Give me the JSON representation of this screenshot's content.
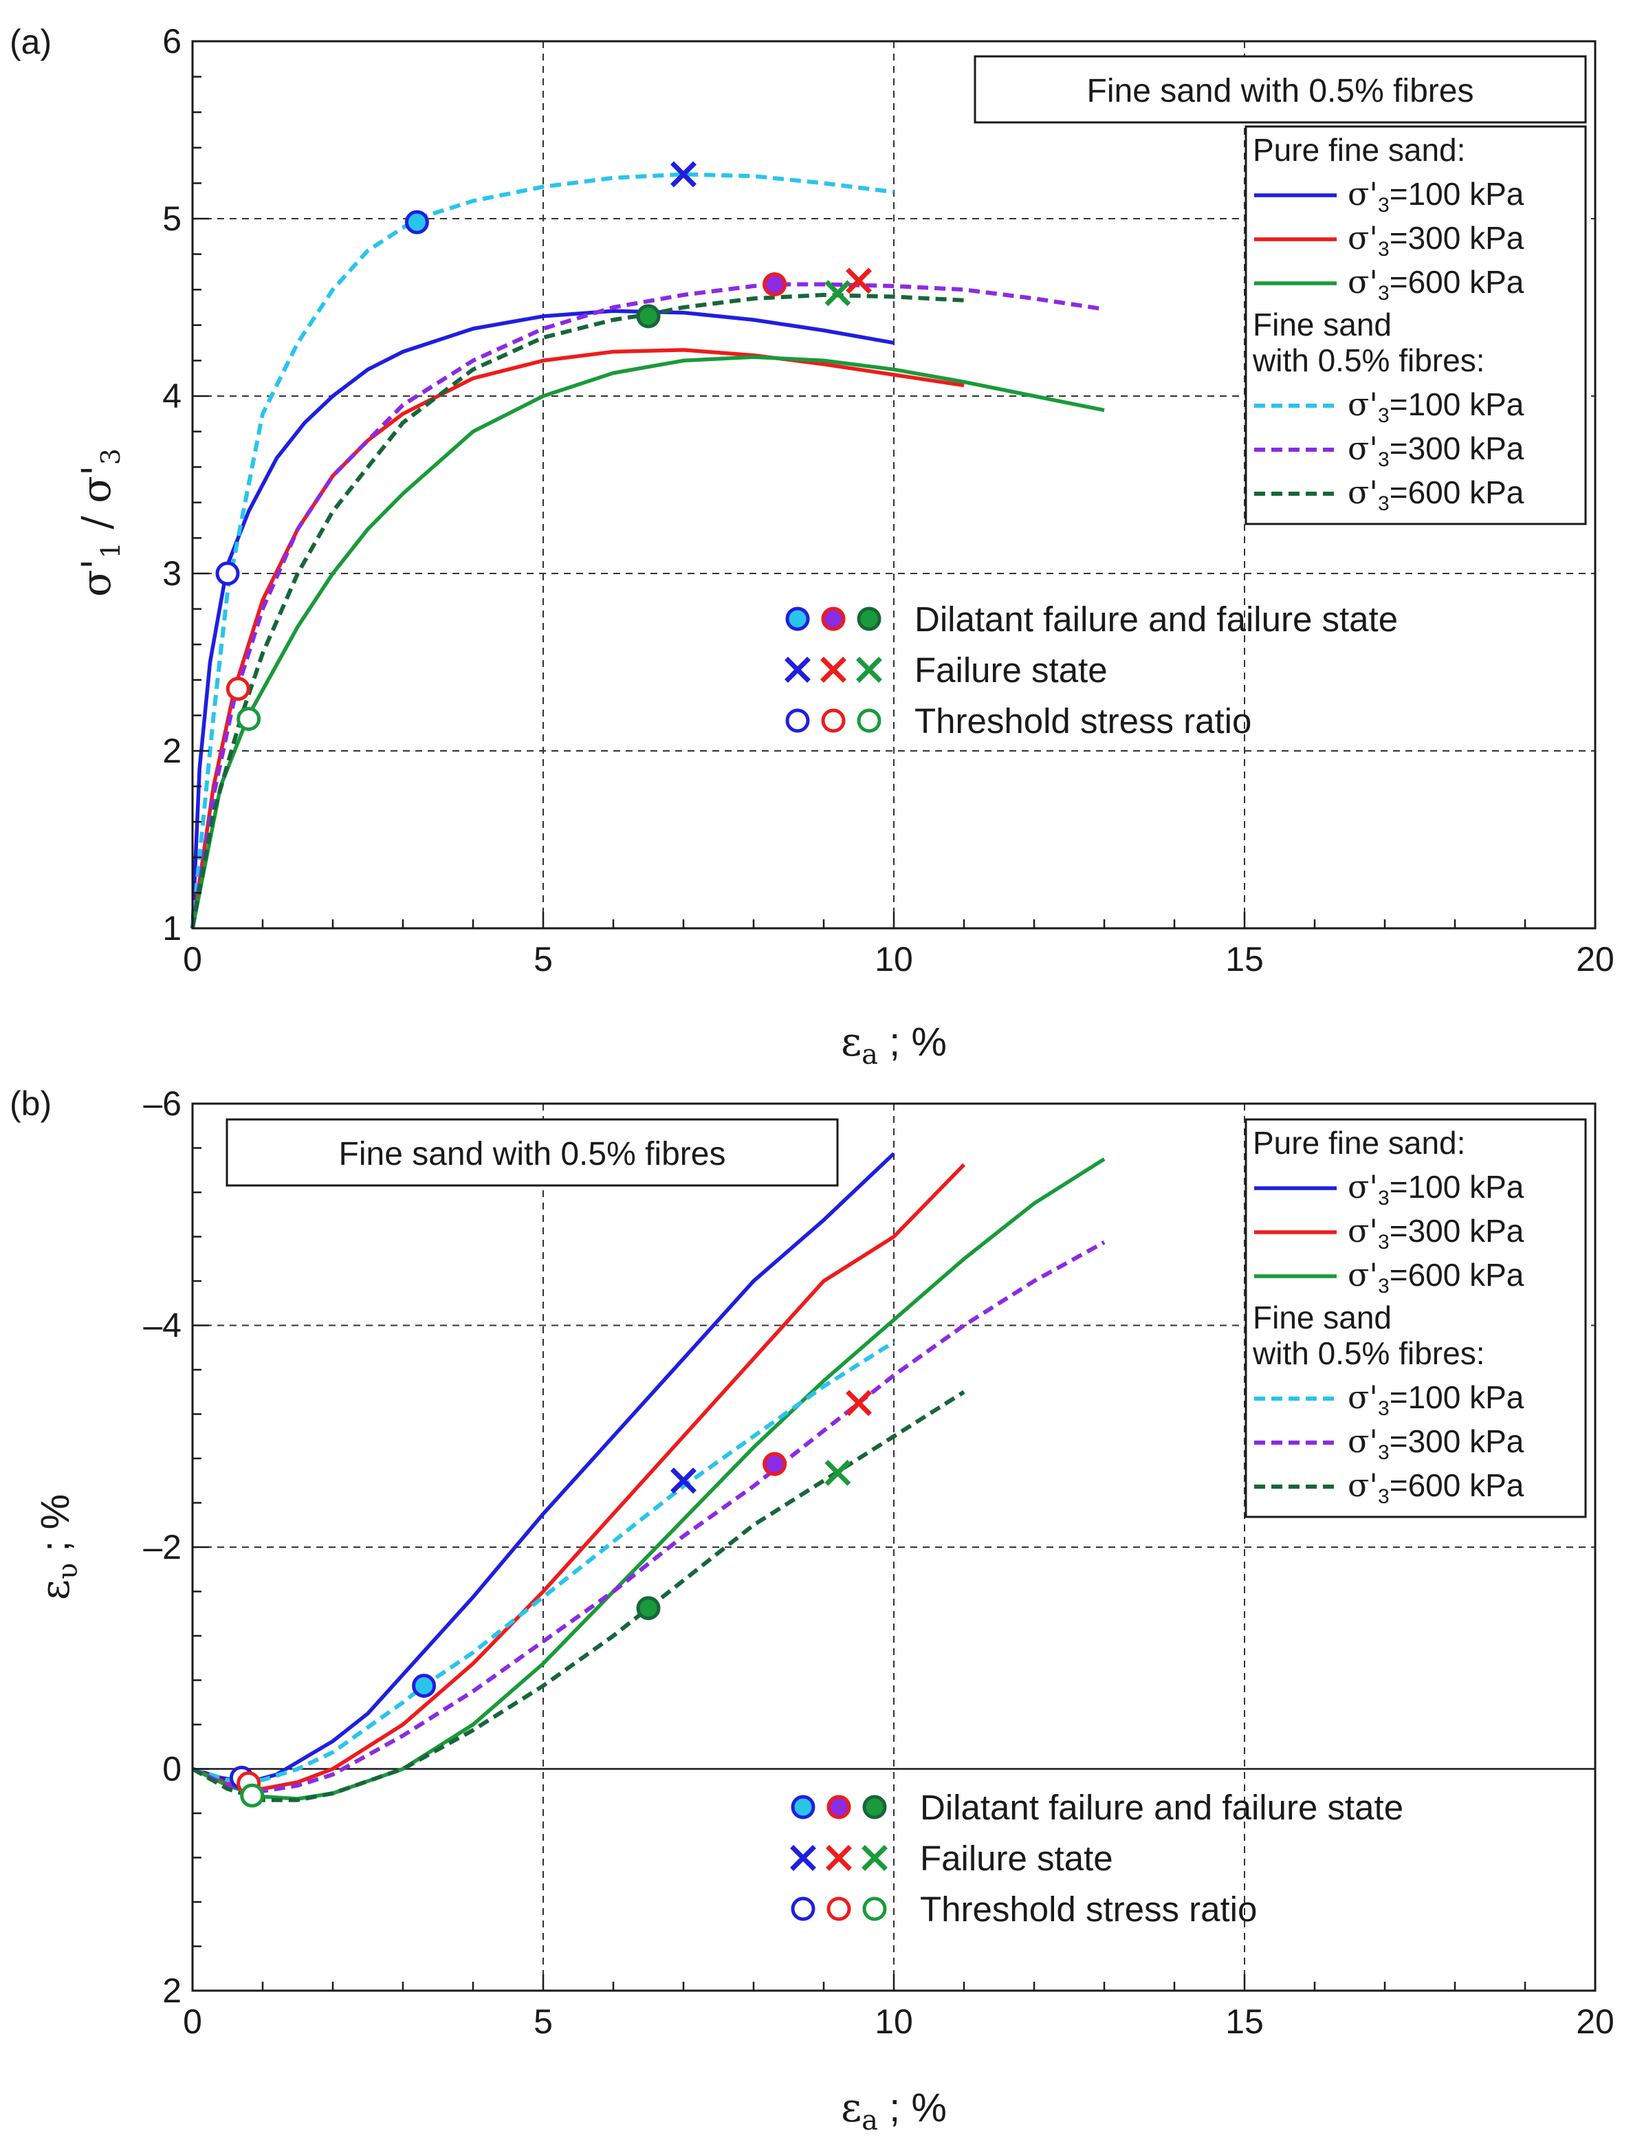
{
  "figure": {
    "colors": {
      "blue": "#1f1fe0",
      "red": "#ee1c1c",
      "green": "#1a9a3a",
      "cyan": "#29c4ec",
      "purple": "#8b2be2",
      "darkgreen": "#17663a",
      "frame": "#1a1a1a",
      "grid": "#333333"
    }
  },
  "chart_data": [
    {
      "panel": "(a)",
      "type": "line",
      "title": "Fine sand with 0.5% fibres",
      "xlabel_sym": "ε",
      "xlabel_sub": "a",
      "xlabel_rest": " ; %",
      "ylabel_top": "σ'",
      "ylabel_sub1": "1",
      "ylabel_sep": " / ",
      "ylabel_sub2": "3",
      "xlim": [
        0,
        20
      ],
      "ylim": [
        1,
        6
      ],
      "xticks": [
        "0",
        "5",
        "10",
        "15",
        "20"
      ],
      "yticks": [
        "1",
        "2",
        "3",
        "4",
        "5",
        "6"
      ],
      "grid_x": [
        5,
        10,
        15
      ],
      "grid_y": [
        2,
        3,
        4,
        5
      ],
      "legend_group_1": "Pure fine sand:",
      "legend_group_2a": "Fine sand",
      "legend_group_2b": "with 0.5% fibres:",
      "series": [
        {
          "name": "σ'3=100 kPa",
          "group": "pure",
          "color": "blue",
          "dashed": false,
          "x": [
            0,
            0.1,
            0.25,
            0.5,
            0.8,
            1.2,
            1.6,
            2,
            2.5,
            3,
            4,
            5,
            6,
            7,
            8,
            9,
            10
          ],
          "y": [
            1,
            1.9,
            2.5,
            3.05,
            3.35,
            3.65,
            3.85,
            4.0,
            4.15,
            4.25,
            4.38,
            4.45,
            4.48,
            4.47,
            4.43,
            4.37,
            4.3
          ]
        },
        {
          "name": "σ'3=300 kPa",
          "group": "pure",
          "color": "red",
          "dashed": false,
          "x": [
            0,
            0.3,
            0.6,
            1,
            1.5,
            2,
            2.5,
            3,
            4,
            5,
            6,
            7,
            8,
            9,
            10,
            11
          ],
          "y": [
            1,
            1.8,
            2.35,
            2.85,
            3.25,
            3.55,
            3.75,
            3.9,
            4.1,
            4.2,
            4.25,
            4.26,
            4.23,
            4.18,
            4.12,
            4.06
          ]
        },
        {
          "name": "σ'3=600 kPa",
          "group": "pure",
          "color": "green",
          "dashed": false,
          "x": [
            0,
            0.4,
            0.8,
            1.5,
            2,
            2.5,
            3,
            4,
            5,
            6,
            7,
            8,
            9,
            10,
            11,
            12,
            13
          ],
          "y": [
            1,
            1.8,
            2.2,
            2.7,
            3.0,
            3.25,
            3.45,
            3.8,
            4.0,
            4.13,
            4.2,
            4.22,
            4.2,
            4.15,
            4.08,
            4.0,
            3.92
          ]
        },
        {
          "name": "σ'3=100 kPa",
          "group": "fibre",
          "color": "cyan",
          "dashed": true,
          "x": [
            0,
            0.3,
            0.5,
            0.8,
            1,
            1.5,
            2,
            2.5,
            3.2,
            4,
            5,
            6,
            7,
            8,
            9,
            10
          ],
          "y": [
            1,
            2.2,
            2.9,
            3.5,
            3.9,
            4.3,
            4.6,
            4.82,
            5.0,
            5.1,
            5.18,
            5.23,
            5.25,
            5.24,
            5.2,
            5.15
          ]
        },
        {
          "name": "σ'3=300 kPa",
          "group": "fibre",
          "color": "purple",
          "dashed": true,
          "x": [
            0,
            0.3,
            0.6,
            1,
            1.5,
            2,
            3,
            4,
            5,
            6,
            7,
            8,
            8.5,
            9,
            10,
            11,
            12,
            13
          ],
          "y": [
            1,
            1.75,
            2.3,
            2.8,
            3.25,
            3.55,
            3.95,
            4.2,
            4.38,
            4.5,
            4.57,
            4.62,
            4.63,
            4.63,
            4.62,
            4.6,
            4.55,
            4.49
          ]
        },
        {
          "name": "σ'3=600 kPa",
          "group": "fibre",
          "color": "darkgreen",
          "dashed": true,
          "x": [
            0,
            0.3,
            0.7,
            1,
            1.5,
            2,
            3,
            4,
            5,
            6,
            6.5,
            7,
            8,
            9,
            10,
            11
          ],
          "y": [
            1,
            1.65,
            2.2,
            2.55,
            3.0,
            3.35,
            3.85,
            4.15,
            4.33,
            4.43,
            4.46,
            4.5,
            4.55,
            4.57,
            4.56,
            4.54
          ]
        }
      ],
      "markers": [
        {
          "kind": "filled",
          "x": 3.2,
          "y": 4.98,
          "face": "cyan",
          "edge": "blue"
        },
        {
          "kind": "filled",
          "x": 8.3,
          "y": 4.63,
          "face": "purple",
          "edge": "red"
        },
        {
          "kind": "filled",
          "x": 6.5,
          "y": 4.45,
          "face": "green",
          "edge": "darkgreen"
        },
        {
          "kind": "cross",
          "x": 7.0,
          "y": 5.25,
          "color": "blue"
        },
        {
          "kind": "cross",
          "x": 9.5,
          "y": 4.65,
          "color": "red"
        },
        {
          "kind": "cross",
          "x": 9.2,
          "y": 4.58,
          "color": "green"
        },
        {
          "kind": "open",
          "x": 0.5,
          "y": 3.0,
          "color": "blue"
        },
        {
          "kind": "open",
          "x": 0.65,
          "y": 2.35,
          "color": "red"
        },
        {
          "kind": "open",
          "x": 0.8,
          "y": 2.18,
          "color": "green"
        }
      ],
      "marker_legend": [
        "Dilatant failure and failure state",
        "Failure state",
        "Threshold stress ratio"
      ]
    },
    {
      "panel": "(b)",
      "type": "line",
      "title": "Fine sand with 0.5% fibres",
      "xlabel_sym": "ε",
      "xlabel_sub": "a",
      "xlabel_rest": " ; %",
      "ylabel_sym": "ε",
      "ylabel_sub": "υ",
      "ylabel_rest": " ; %",
      "xlim": [
        0,
        20
      ],
      "ylim": [
        2,
        -6
      ],
      "xticks": [
        "0",
        "5",
        "10",
        "15",
        "20"
      ],
      "yticks": [
        "2",
        "0",
        "–2",
        "–4",
        "–6"
      ],
      "ytick_values": [
        2,
        0,
        -2,
        -4,
        -6
      ],
      "grid_x": [
        5,
        10,
        15
      ],
      "grid_y": [
        -2,
        -4
      ],
      "zero_line": 0,
      "legend_group_1": "Pure fine sand:",
      "legend_group_2a": "Fine sand",
      "legend_group_2b": "with 0.5% fibres:",
      "series": [
        {
          "name": "σ'3=100 kPa",
          "group": "pure",
          "color": "blue",
          "dashed": false,
          "x": [
            0,
            0.4,
            0.8,
            1.2,
            1.6,
            2,
            2.5,
            3,
            4,
            5,
            6,
            7,
            8,
            9,
            10
          ],
          "y": [
            0,
            0.08,
            0.12,
            0.05,
            -0.1,
            -0.25,
            -0.5,
            -0.85,
            -1.55,
            -2.3,
            -3.0,
            -3.7,
            -4.4,
            -4.95,
            -5.55
          ]
        },
        {
          "name": "σ'3=300 kPa",
          "group": "pure",
          "color": "red",
          "dashed": false,
          "x": [
            0,
            0.5,
            1,
            1.5,
            2,
            3,
            4,
            5,
            6,
            7,
            8,
            9,
            10,
            11
          ],
          "y": [
            0,
            0.13,
            0.18,
            0.12,
            0.0,
            -0.4,
            -0.95,
            -1.6,
            -2.3,
            -3.0,
            -3.7,
            -4.4,
            -4.8,
            -5.45
          ]
        },
        {
          "name": "σ'3=600 kPa",
          "group": "pure",
          "color": "green",
          "dashed": false,
          "x": [
            0,
            0.5,
            1,
            1.5,
            2,
            3,
            4,
            5,
            6,
            7,
            8,
            9,
            10,
            11,
            12,
            13
          ],
          "y": [
            0,
            0.15,
            0.25,
            0.27,
            0.22,
            0.0,
            -0.4,
            -0.95,
            -1.6,
            -2.25,
            -2.9,
            -3.5,
            -4.05,
            -4.6,
            -5.1,
            -5.5
          ]
        },
        {
          "name": "σ'3=100 kPa",
          "group": "fibre",
          "color": "cyan",
          "dashed": true,
          "x": [
            0,
            0.5,
            1,
            1.5,
            2,
            3,
            3.3,
            4,
            5,
            6,
            7,
            8,
            9,
            10
          ],
          "y": [
            0,
            0.1,
            0.1,
            0.0,
            -0.15,
            -0.6,
            -0.75,
            -1.05,
            -1.55,
            -2.05,
            -2.55,
            -3.0,
            -3.45,
            -3.85
          ]
        },
        {
          "name": "σ'3=300 kPa",
          "group": "fibre",
          "color": "purple",
          "dashed": true,
          "x": [
            0,
            0.5,
            1,
            1.5,
            2,
            3,
            4,
            5,
            6,
            7,
            8,
            8.3,
            9,
            10,
            11,
            12,
            13
          ],
          "y": [
            0,
            0.15,
            0.2,
            0.15,
            0.05,
            -0.3,
            -0.7,
            -1.15,
            -1.6,
            -2.1,
            -2.55,
            -2.7,
            -3.05,
            -3.55,
            -4.0,
            -4.4,
            -4.75
          ]
        },
        {
          "name": "σ'3=600 kPa",
          "group": "fibre",
          "color": "darkgreen",
          "dashed": true,
          "x": [
            0,
            0.5,
            1,
            1.5,
            2,
            3,
            4,
            5,
            6,
            6.5,
            7,
            8,
            9,
            10,
            11
          ],
          "y": [
            0,
            0.18,
            0.28,
            0.28,
            0.22,
            0.0,
            -0.35,
            -0.75,
            -1.2,
            -1.45,
            -1.7,
            -2.2,
            -2.6,
            -3.0,
            -3.4
          ]
        }
      ],
      "markers": [
        {
          "kind": "filled",
          "x": 3.3,
          "y": -0.75,
          "face": "cyan",
          "edge": "blue"
        },
        {
          "kind": "filled",
          "x": 8.3,
          "y": -2.75,
          "face": "purple",
          "edge": "red"
        },
        {
          "kind": "filled",
          "x": 6.5,
          "y": -1.45,
          "face": "green",
          "edge": "darkgreen"
        },
        {
          "kind": "cross",
          "x": 7.0,
          "y": -2.6,
          "color": "blue"
        },
        {
          "kind": "cross",
          "x": 9.5,
          "y": -3.3,
          "color": "red"
        },
        {
          "kind": "cross",
          "x": 9.2,
          "y": -2.67,
          "color": "green"
        },
        {
          "kind": "open",
          "x": 0.7,
          "y": 0.08,
          "color": "blue"
        },
        {
          "kind": "open",
          "x": 0.8,
          "y": 0.13,
          "color": "red"
        },
        {
          "kind": "open",
          "x": 0.85,
          "y": 0.24,
          "color": "green"
        }
      ],
      "marker_legend": [
        "Dilatant failure and failure state",
        "Failure state",
        "Threshold stress ratio"
      ]
    }
  ]
}
